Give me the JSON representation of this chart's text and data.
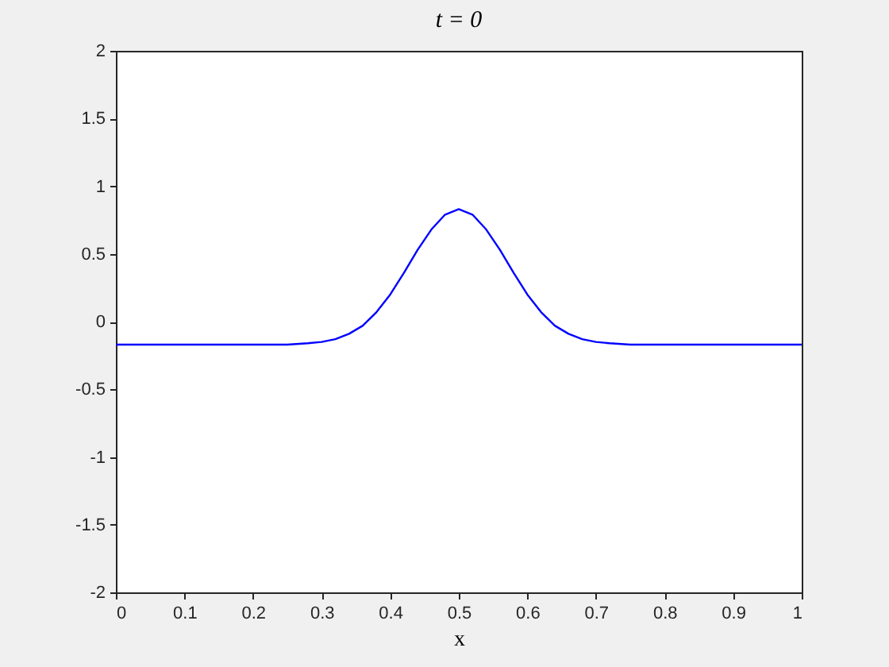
{
  "chart_data": {
    "type": "line",
    "title": "t = 0",
    "xlabel": "x",
    "x": [
      0,
      0.1,
      0.2,
      0.25,
      0.28,
      0.3,
      0.32,
      0.34,
      0.36,
      0.38,
      0.4,
      0.42,
      0.44,
      0.46,
      0.48,
      0.5,
      0.52,
      0.54,
      0.56,
      0.58,
      0.6,
      0.62,
      0.64,
      0.66,
      0.68,
      0.7,
      0.72,
      0.75,
      0.8,
      0.9,
      1
    ],
    "series": [
      {
        "color": "#0000ff",
        "values": [
          -0.17,
          -0.17,
          -0.17,
          -0.17,
          -0.16,
          -0.15,
          -0.13,
          -0.09,
          -0.03,
          0.07,
          0.2,
          0.36,
          0.53,
          0.68,
          0.79,
          0.83,
          0.79,
          0.68,
          0.53,
          0.36,
          0.2,
          0.07,
          -0.03,
          -0.09,
          -0.13,
          -0.15,
          -0.16,
          -0.17,
          -0.17,
          -0.17,
          -0.17
        ]
      }
    ],
    "xlim": [
      0,
      1
    ],
    "ylim": [
      -2,
      2
    ],
    "xticks": [
      0,
      0.1,
      0.2,
      0.3,
      0.4,
      0.5,
      0.6,
      0.7,
      0.8,
      0.9,
      1
    ],
    "yticks": [
      -2,
      -1.5,
      -1,
      -0.5,
      0,
      0.5,
      1,
      1.5,
      2
    ],
    "grid": false,
    "legend": false,
    "line_style": "solid"
  }
}
